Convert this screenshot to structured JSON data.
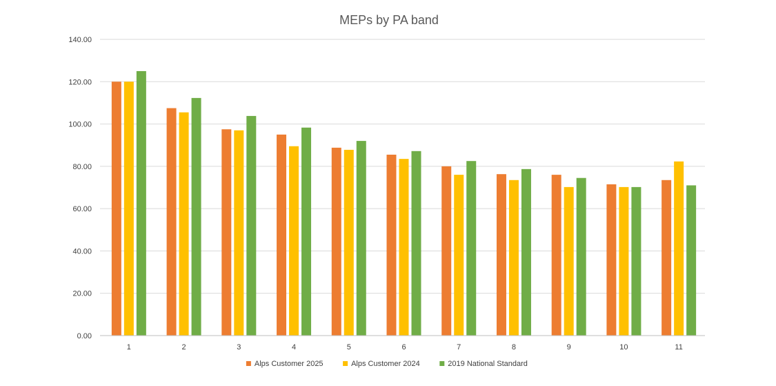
{
  "chart_data": {
    "type": "bar",
    "title": "MEPs by PA band",
    "xlabel": "",
    "ylabel": "",
    "categories": [
      "1",
      "2",
      "3",
      "4",
      "5",
      "6",
      "7",
      "8",
      "9",
      "10",
      "11"
    ],
    "ylim": [
      0,
      140
    ],
    "yticks": [
      "0.00",
      "20.00",
      "40.00",
      "60.00",
      "80.00",
      "100.00",
      "120.00",
      "140.00"
    ],
    "grid": true,
    "legend_position": "bottom",
    "series": [
      {
        "name": "Alps Customer 2025",
        "color": "#ED7D31",
        "values": [
          120,
          107.5,
          97.5,
          95,
          88.8,
          85.5,
          80,
          76.3,
          76,
          71.5,
          73.5
        ]
      },
      {
        "name": "Alps Customer 2024",
        "color": "#FFC000",
        "values": [
          120,
          105.5,
          97,
          89.5,
          87.8,
          83.5,
          76,
          73.5,
          70.2,
          70.2,
          82.3
        ]
      },
      {
        "name": "2019 National Standard",
        "color": "#70AD47",
        "values": [
          125,
          112.3,
          103.8,
          98.3,
          92,
          87.2,
          82.5,
          78.7,
          74.5,
          70.2,
          71
        ]
      }
    ]
  }
}
